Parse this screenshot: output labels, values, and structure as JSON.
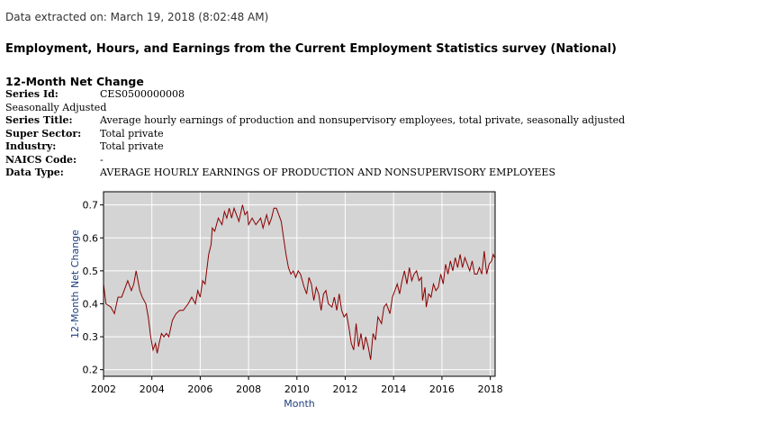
{
  "header": {
    "extracted": "Data extracted on: March 19, 2018 (8:02:48 AM)",
    "survey_title": "Employment, Hours, and Earnings from the Current Employment Statistics survey (National)"
  },
  "series": {
    "heading": "12-Month Net Change",
    "series_id_label": "Series Id:",
    "series_id": "CES0500000008",
    "seasonal": "Seasonally Adjusted",
    "title_label": "Series Title:",
    "title": "Average hourly earnings of production and nonsupervisory employees, total private, seasonally adjusted",
    "sector_label": "Super Sector:",
    "sector": "Total private",
    "industry_label": "Industry:",
    "industry": "Total private",
    "naics_label": "NAICS Code:",
    "naics": "-",
    "datatype_label": "Data Type:",
    "datatype": "AVERAGE HOURLY EARNINGS OF PRODUCTION AND NONSUPERVISORY EMPLOYEES"
  },
  "colors": {
    "line": "#8b0000",
    "plot_bg": "#d4d4d4",
    "grid": "#ffffff",
    "axis_title": "#1f3f7f"
  },
  "chart_data": {
    "type": "line",
    "xlabel": "Month",
    "ylabel": "12-Month Net Change",
    "xlim": [
      2002,
      2018.2
    ],
    "ylim": [
      0.18,
      0.74
    ],
    "xticks": [
      2002,
      2004,
      2006,
      2008,
      2010,
      2012,
      2014,
      2016,
      2018
    ],
    "yticks": [
      0.2,
      0.3,
      0.4,
      0.5,
      0.6,
      0.7
    ],
    "grid": true,
    "series": [
      {
        "name": "12-Month Net Change",
        "points": [
          [
            2002.0,
            0.46
          ],
          [
            2002.1,
            0.4
          ],
          [
            2002.3,
            0.39
          ],
          [
            2002.45,
            0.37
          ],
          [
            2002.6,
            0.42
          ],
          [
            2002.75,
            0.42
          ],
          [
            2002.9,
            0.45
          ],
          [
            2003.0,
            0.47
          ],
          [
            2003.15,
            0.44
          ],
          [
            2003.25,
            0.46
          ],
          [
            2003.35,
            0.5
          ],
          [
            2003.5,
            0.44
          ],
          [
            2003.6,
            0.42
          ],
          [
            2003.75,
            0.4
          ],
          [
            2003.85,
            0.36
          ],
          [
            2003.95,
            0.3
          ],
          [
            2004.05,
            0.26
          ],
          [
            2004.15,
            0.28
          ],
          [
            2004.22,
            0.25
          ],
          [
            2004.3,
            0.28
          ],
          [
            2004.4,
            0.31
          ],
          [
            2004.5,
            0.3
          ],
          [
            2004.6,
            0.31
          ],
          [
            2004.7,
            0.3
          ],
          [
            2004.85,
            0.35
          ],
          [
            2005.0,
            0.37
          ],
          [
            2005.15,
            0.38
          ],
          [
            2005.3,
            0.38
          ],
          [
            2005.5,
            0.4
          ],
          [
            2005.65,
            0.42
          ],
          [
            2005.8,
            0.4
          ],
          [
            2005.9,
            0.44
          ],
          [
            2006.0,
            0.42
          ],
          [
            2006.1,
            0.47
          ],
          [
            2006.2,
            0.46
          ],
          [
            2006.35,
            0.55
          ],
          [
            2006.45,
            0.58
          ],
          [
            2006.5,
            0.63
          ],
          [
            2006.6,
            0.62
          ],
          [
            2006.75,
            0.66
          ],
          [
            2006.9,
            0.64
          ],
          [
            2007.0,
            0.68
          ],
          [
            2007.1,
            0.66
          ],
          [
            2007.2,
            0.69
          ],
          [
            2007.3,
            0.66
          ],
          [
            2007.4,
            0.69
          ],
          [
            2007.5,
            0.67
          ],
          [
            2007.6,
            0.65
          ],
          [
            2007.75,
            0.7
          ],
          [
            2007.85,
            0.67
          ],
          [
            2007.95,
            0.68
          ],
          [
            2008.0,
            0.64
          ],
          [
            2008.15,
            0.66
          ],
          [
            2008.3,
            0.64
          ],
          [
            2008.4,
            0.65
          ],
          [
            2008.5,
            0.66
          ],
          [
            2008.6,
            0.63
          ],
          [
            2008.75,
            0.67
          ],
          [
            2008.85,
            0.64
          ],
          [
            2008.95,
            0.66
          ],
          [
            2009.05,
            0.69
          ],
          [
            2009.15,
            0.69
          ],
          [
            2009.25,
            0.67
          ],
          [
            2009.35,
            0.65
          ],
          [
            2009.45,
            0.6
          ],
          [
            2009.55,
            0.55
          ],
          [
            2009.65,
            0.51
          ],
          [
            2009.75,
            0.49
          ],
          [
            2009.85,
            0.5
          ],
          [
            2009.95,
            0.48
          ],
          [
            2010.05,
            0.5
          ],
          [
            2010.15,
            0.49
          ],
          [
            2010.3,
            0.45
          ],
          [
            2010.4,
            0.43
          ],
          [
            2010.5,
            0.48
          ],
          [
            2010.6,
            0.46
          ],
          [
            2010.7,
            0.41
          ],
          [
            2010.8,
            0.45
          ],
          [
            2010.9,
            0.43
          ],
          [
            2011.0,
            0.38
          ],
          [
            2011.1,
            0.43
          ],
          [
            2011.2,
            0.44
          ],
          [
            2011.3,
            0.4
          ],
          [
            2011.45,
            0.39
          ],
          [
            2011.55,
            0.42
          ],
          [
            2011.65,
            0.38
          ],
          [
            2011.75,
            0.43
          ],
          [
            2011.85,
            0.38
          ],
          [
            2011.95,
            0.36
          ],
          [
            2012.05,
            0.37
          ],
          [
            2012.15,
            0.33
          ],
          [
            2012.25,
            0.28
          ],
          [
            2012.35,
            0.26
          ],
          [
            2012.45,
            0.34
          ],
          [
            2012.55,
            0.27
          ],
          [
            2012.65,
            0.31
          ],
          [
            2012.75,
            0.26
          ],
          [
            2012.85,
            0.3
          ],
          [
            2012.95,
            0.27
          ],
          [
            2013.05,
            0.23
          ],
          [
            2013.15,
            0.31
          ],
          [
            2013.25,
            0.29
          ],
          [
            2013.35,
            0.36
          ],
          [
            2013.5,
            0.34
          ],
          [
            2013.6,
            0.39
          ],
          [
            2013.7,
            0.4
          ],
          [
            2013.85,
            0.37
          ],
          [
            2013.95,
            0.42
          ],
          [
            2014.05,
            0.44
          ],
          [
            2014.15,
            0.46
          ],
          [
            2014.25,
            0.43
          ],
          [
            2014.35,
            0.47
          ],
          [
            2014.45,
            0.5
          ],
          [
            2014.55,
            0.46
          ],
          [
            2014.65,
            0.51
          ],
          [
            2014.75,
            0.47
          ],
          [
            2014.85,
            0.49
          ],
          [
            2014.95,
            0.5
          ],
          [
            2015.05,
            0.47
          ],
          [
            2015.15,
            0.48
          ],
          [
            2015.2,
            0.41
          ],
          [
            2015.3,
            0.45
          ],
          [
            2015.35,
            0.39
          ],
          [
            2015.45,
            0.43
          ],
          [
            2015.55,
            0.42
          ],
          [
            2015.65,
            0.46
          ],
          [
            2015.75,
            0.44
          ],
          [
            2015.85,
            0.45
          ],
          [
            2015.95,
            0.49
          ],
          [
            2016.05,
            0.46
          ],
          [
            2016.15,
            0.52
          ],
          [
            2016.25,
            0.49
          ],
          [
            2016.35,
            0.53
          ],
          [
            2016.45,
            0.5
          ],
          [
            2016.55,
            0.54
          ],
          [
            2016.65,
            0.51
          ],
          [
            2016.75,
            0.55
          ],
          [
            2016.85,
            0.51
          ],
          [
            2016.95,
            0.54
          ],
          [
            2017.05,
            0.52
          ],
          [
            2017.15,
            0.5
          ],
          [
            2017.25,
            0.53
          ],
          [
            2017.35,
            0.49
          ],
          [
            2017.45,
            0.49
          ],
          [
            2017.55,
            0.51
          ],
          [
            2017.65,
            0.49
          ],
          [
            2017.75,
            0.56
          ],
          [
            2017.85,
            0.49
          ],
          [
            2017.95,
            0.52
          ],
          [
            2018.05,
            0.53
          ],
          [
            2018.12,
            0.55
          ],
          [
            2018.18,
            0.54
          ]
        ]
      }
    ]
  }
}
